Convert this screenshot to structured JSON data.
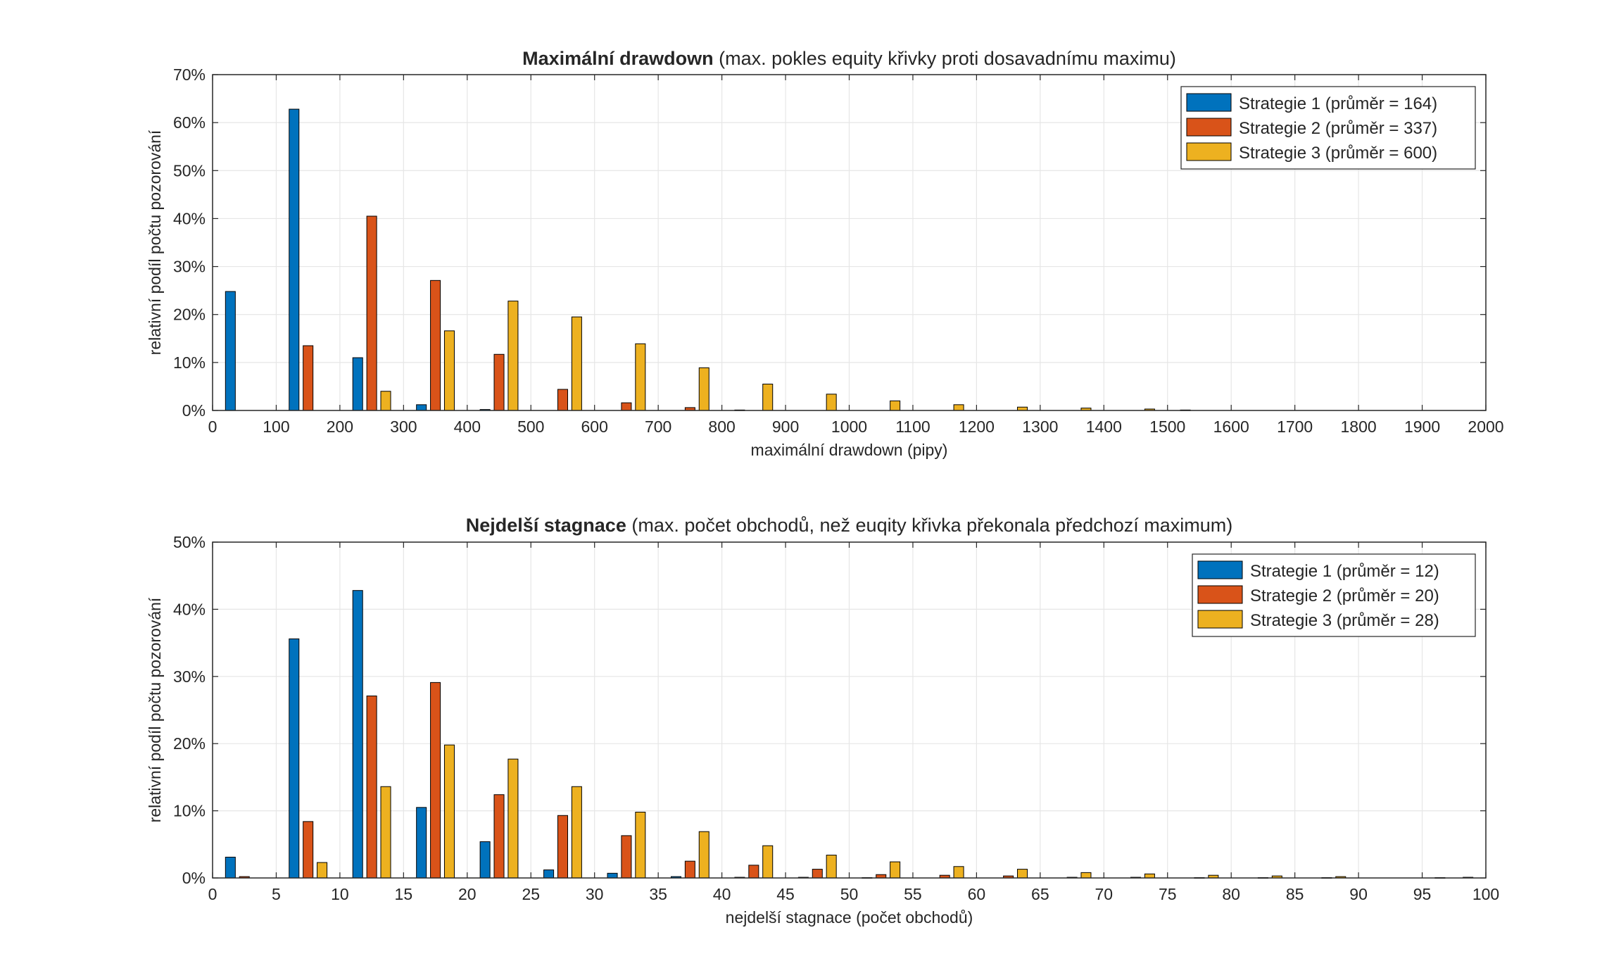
{
  "colors": {
    "strategy1": "#0072BD",
    "strategy2": "#D95319",
    "strategy3": "#EDB120",
    "axis": "#262626",
    "grid": "#e6e6e6"
  },
  "chart_data": [
    {
      "type": "bar",
      "title_bold": "Maximální drawdown",
      "title_rest": " (max. pokles equity křivky proti dosavadnímu maximu)",
      "xlabel": "maximální drawdown (pipy)",
      "ylabel": "relativní podíl počtu pozorování",
      "xlim": [
        0,
        2000
      ],
      "ylim": [
        0,
        70
      ],
      "xticks": [
        0,
        100,
        200,
        300,
        400,
        500,
        600,
        700,
        800,
        900,
        1000,
        1100,
        1200,
        1300,
        1400,
        1500,
        1600,
        1700,
        1800,
        1900,
        2000
      ],
      "yticks": [
        0,
        10,
        20,
        30,
        40,
        50,
        60,
        70
      ],
      "yticklabels": [
        "0%",
        "10%",
        "20%",
        "30%",
        "40%",
        "50%",
        "60%",
        "70%"
      ],
      "categories": [
        50,
        150,
        250,
        350,
        450,
        550,
        650,
        750,
        850,
        950,
        1050,
        1150,
        1250,
        1350,
        1450,
        1550,
        1650,
        1750,
        1850,
        1950
      ],
      "grid": true,
      "legend_position": "top-right",
      "series": [
        {
          "name": "Strategie 1  (průměr = 164)",
          "values": [
            24.8,
            62.8,
            11.0,
            1.2,
            0.2,
            0,
            0,
            0,
            0.1,
            0,
            0,
            0,
            0,
            0,
            0,
            0.1,
            0,
            0,
            0,
            0
          ]
        },
        {
          "name": "Strategie 2  (průměr = 337)",
          "values": [
            0,
            13.5,
            40.5,
            27.1,
            11.7,
            4.4,
            1.6,
            0.6,
            0,
            0,
            0,
            0,
            0,
            0,
            0,
            0,
            0,
            0,
            0,
            0
          ]
        },
        {
          "name": "Strategie 3  (průměr = 600)",
          "values": [
            0,
            0,
            4.0,
            16.6,
            22.8,
            19.5,
            13.9,
            8.9,
            5.5,
            3.4,
            2.0,
            1.2,
            0.7,
            0.5,
            0.3,
            0,
            0,
            0,
            0,
            0
          ]
        }
      ]
    },
    {
      "type": "bar",
      "title_bold": "Nejdelší stagnace",
      "title_rest": " (max. počet obchodů, než euqity křivka překonala předchozí maximum)",
      "xlabel": "nejdelší stagnace (počet obchodů)",
      "ylabel": "relativní podíl počtu pozorování",
      "xlim": [
        0,
        100
      ],
      "ylim": [
        0,
        50
      ],
      "xticks": [
        0,
        5,
        10,
        15,
        20,
        25,
        30,
        35,
        40,
        45,
        50,
        55,
        60,
        65,
        70,
        75,
        80,
        85,
        90,
        95,
        100
      ],
      "yticks": [
        0,
        10,
        20,
        30,
        40,
        50
      ],
      "yticklabels": [
        "0%",
        "10%",
        "20%",
        "30%",
        "40%",
        "50%"
      ],
      "categories": [
        2.5,
        7.5,
        12.5,
        17.5,
        22.5,
        27.5,
        32.5,
        37.5,
        42.5,
        47.5,
        52.5,
        57.5,
        62.5,
        67.5,
        72.5,
        77.5,
        82.5,
        87.5,
        92.5,
        97.5
      ],
      "grid": true,
      "legend_position": "top-right",
      "series": [
        {
          "name": "Strategie 1  (průměr = 12)",
          "values": [
            3.1,
            35.6,
            42.8,
            10.5,
            5.4,
            1.2,
            0.7,
            0.2,
            0.1,
            0.1,
            0.05,
            0,
            0,
            0,
            0,
            0,
            0,
            0,
            0,
            0.05
          ]
        },
        {
          "name": "Strategie 2  (průměr = 20)",
          "values": [
            0.2,
            8.4,
            27.1,
            29.1,
            12.4,
            9.3,
            6.3,
            2.5,
            1.9,
            1.3,
            0.5,
            0.4,
            0.3,
            0.1,
            0.1,
            0.05,
            0.05,
            0.05,
            0,
            0
          ]
        },
        {
          "name": "Strategie 3  (průměr = 28)",
          "values": [
            0,
            2.3,
            13.6,
            19.8,
            17.7,
            13.6,
            9.8,
            6.9,
            4.8,
            3.4,
            2.4,
            1.7,
            1.3,
            0.8,
            0.6,
            0.4,
            0.3,
            0.2,
            0,
            0.1
          ]
        }
      ]
    }
  ]
}
